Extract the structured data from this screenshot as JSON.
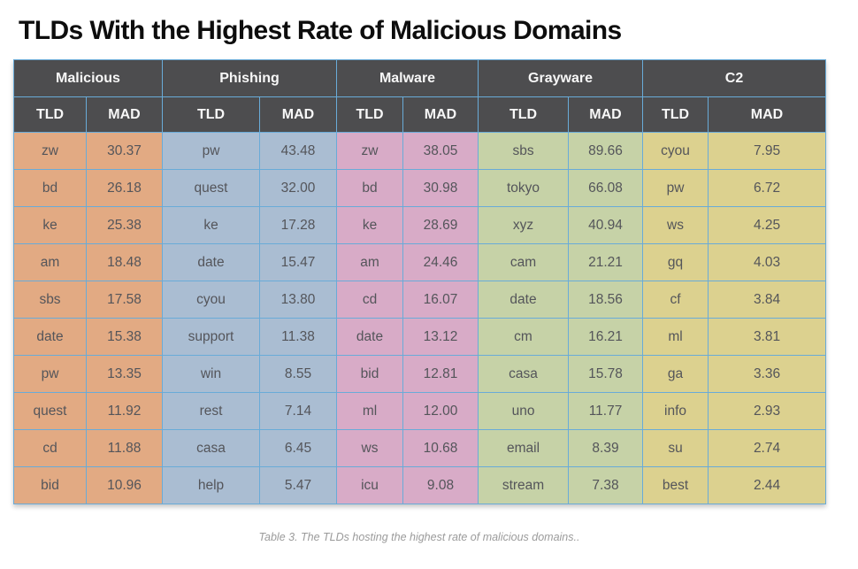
{
  "title": "TLDs With the Highest Rate of Malicious Domains",
  "caption": "Table 3. The TLDs hosting the highest rate of malicious domains..",
  "colors": {
    "header_background": "#4d4d4f",
    "header_text": "#f7f7f7",
    "cell_border": "#69abd8",
    "body_text": "#54555a",
    "title_text": "#0d0d0d",
    "caption_text": "#9b9b9b"
  },
  "chart_data": {
    "type": "table",
    "title": "TLDs With the Highest Rate of Malicious Domains",
    "caption": "Table 3. The TLDs hosting the highest rate of malicious domains..",
    "row_count": 10,
    "columns_per_group": [
      "TLD",
      "MAD"
    ],
    "groups": [
      {
        "label": "Malicious",
        "color": "#e2aa83",
        "subheaders": [
          "TLD",
          "MAD"
        ],
        "rows": [
          [
            "zw",
            "30.37"
          ],
          [
            "bd",
            "26.18"
          ],
          [
            "ke",
            "25.38"
          ],
          [
            "am",
            "18.48"
          ],
          [
            "sbs",
            "17.58"
          ],
          [
            "date",
            "15.38"
          ],
          [
            "pw",
            "13.35"
          ],
          [
            "quest",
            "11.92"
          ],
          [
            "cd",
            "11.88"
          ],
          [
            "bid",
            "10.96"
          ]
        ]
      },
      {
        "label": "Phishing",
        "color": "#aabdd2",
        "subheaders": [
          "TLD",
          "MAD"
        ],
        "rows": [
          [
            "pw",
            "43.48"
          ],
          [
            "quest",
            "32.00"
          ],
          [
            "ke",
            "17.28"
          ],
          [
            "date",
            "15.47"
          ],
          [
            "cyou",
            "13.80"
          ],
          [
            "support",
            "11.38"
          ],
          [
            "win",
            "8.55"
          ],
          [
            "rest",
            "7.14"
          ],
          [
            "casa",
            "6.45"
          ],
          [
            "help",
            "5.47"
          ]
        ]
      },
      {
        "label": "Malware",
        "color": "#d8abc7",
        "subheaders": [
          "TLD",
          "MAD"
        ],
        "rows": [
          [
            "zw",
            "38.05"
          ],
          [
            "bd",
            "30.98"
          ],
          [
            "ke",
            "28.69"
          ],
          [
            "am",
            "24.46"
          ],
          [
            "cd",
            "16.07"
          ],
          [
            "date",
            "13.12"
          ],
          [
            "bid",
            "12.81"
          ],
          [
            "ml",
            "12.00"
          ],
          [
            "ws",
            "10.68"
          ],
          [
            "icu",
            "9.08"
          ]
        ]
      },
      {
        "label": "Grayware",
        "color": "#c6d2a7",
        "subheaders": [
          "TLD",
          "MAD"
        ],
        "rows": [
          [
            "sbs",
            "89.66"
          ],
          [
            "tokyo",
            "66.08"
          ],
          [
            "xyz",
            "40.94"
          ],
          [
            "cam",
            "21.21"
          ],
          [
            "date",
            "18.56"
          ],
          [
            "cm",
            "16.21"
          ],
          [
            "casa",
            "15.78"
          ],
          [
            "uno",
            "11.77"
          ],
          [
            "email",
            "8.39"
          ],
          [
            "stream",
            "7.38"
          ]
        ]
      },
      {
        "label": "C2",
        "color": "#dcd18f",
        "subheaders": [
          "TLD",
          "MAD"
        ],
        "rows": [
          [
            "cyou",
            "7.95"
          ],
          [
            "pw",
            "6.72"
          ],
          [
            "ws",
            "4.25"
          ],
          [
            "gq",
            "4.03"
          ],
          [
            "cf",
            "3.84"
          ],
          [
            "ml",
            "3.81"
          ],
          [
            "ga",
            "3.36"
          ],
          [
            "info",
            "2.93"
          ],
          [
            "su",
            "2.74"
          ],
          [
            "best",
            "2.44"
          ]
        ]
      }
    ]
  }
}
